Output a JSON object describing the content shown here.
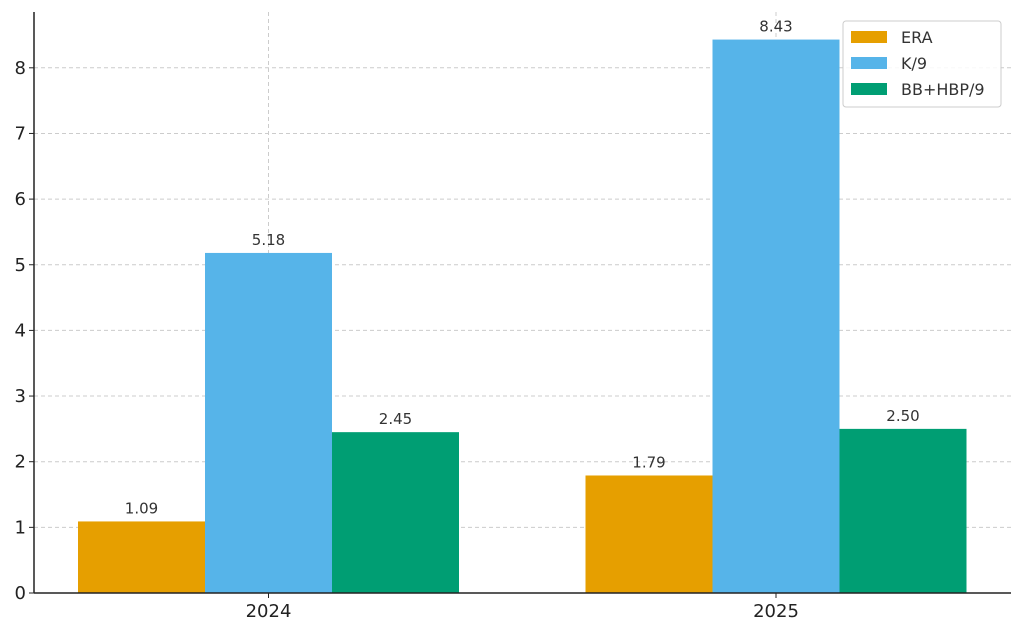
{
  "chart_data": {
    "type": "bar",
    "categories": [
      "2024",
      "2025"
    ],
    "series": [
      {
        "name": "ERA",
        "values": [
          1.09,
          1.79
        ],
        "labels": [
          "1.09",
          "1.79"
        ],
        "color": "#E69F00"
      },
      {
        "name": "K/9",
        "values": [
          5.18,
          8.43
        ],
        "labels": [
          "5.18",
          "8.43"
        ],
        "color": "#56B4E9"
      },
      {
        "name": "BB+HBP/9",
        "values": [
          2.45,
          2.5
        ],
        "labels": [
          "2.45",
          "2.50"
        ],
        "color": "#009E73"
      }
    ],
    "yticks": [
      "0",
      "1",
      "2",
      "3",
      "4",
      "5",
      "6",
      "7",
      "8"
    ],
    "ylim": [
      0,
      8.85
    ],
    "grid": true,
    "legend_position": "top-right",
    "title": "",
    "xlabel": "",
    "ylabel": ""
  }
}
